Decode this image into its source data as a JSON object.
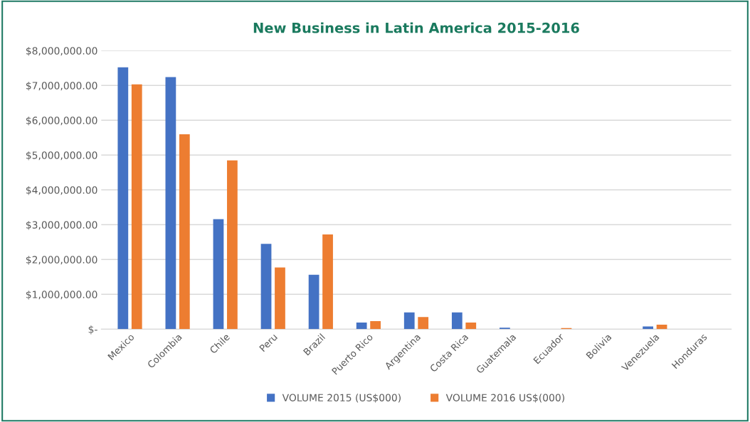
{
  "chart_data": {
    "type": "bar",
    "title": "New Business in Latin America 2015-2016",
    "categories": [
      "Mexico",
      "Colombia",
      "Chile",
      "Peru",
      "Brazil",
      "Puerto Rico",
      "Argentina",
      "Costa Rica",
      "Guatemala",
      "Ecuador",
      "Bolivia",
      "Venezuela",
      "Honduras"
    ],
    "series": [
      {
        "name": "VOLUME 2015 (US$000)",
        "color": "#4472c4",
        "values": [
          7520000,
          7240000,
          3160000,
          2450000,
          1560000,
          190000,
          480000,
          480000,
          40000,
          0,
          0,
          80000,
          0
        ]
      },
      {
        "name": "VOLUME 2016 US$(000)",
        "color": "#ed7d31",
        "values": [
          7030000,
          5600000,
          4850000,
          1770000,
          2720000,
          230000,
          350000,
          190000,
          0,
          30000,
          0,
          130000,
          0
        ]
      }
    ],
    "ylim": [
      0,
      8000000
    ],
    "yticks": [
      {
        "value": 0,
        "label": "$-"
      },
      {
        "value": 1000000,
        "label": "$1,000,000.00"
      },
      {
        "value": 2000000,
        "label": "$2,000,000.00"
      },
      {
        "value": 3000000,
        "label": "$3,000,000.00"
      },
      {
        "value": 4000000,
        "label": "$4,000,000.00"
      },
      {
        "value": 5000000,
        "label": "$5,000,000.00"
      },
      {
        "value": 6000000,
        "label": "$6,000,000.00"
      },
      {
        "value": 7000000,
        "label": "$7,000,000.00"
      },
      {
        "value": 8000000,
        "label": "$8,000,000.00"
      }
    ],
    "grid": "y",
    "legend": "bottom"
  }
}
